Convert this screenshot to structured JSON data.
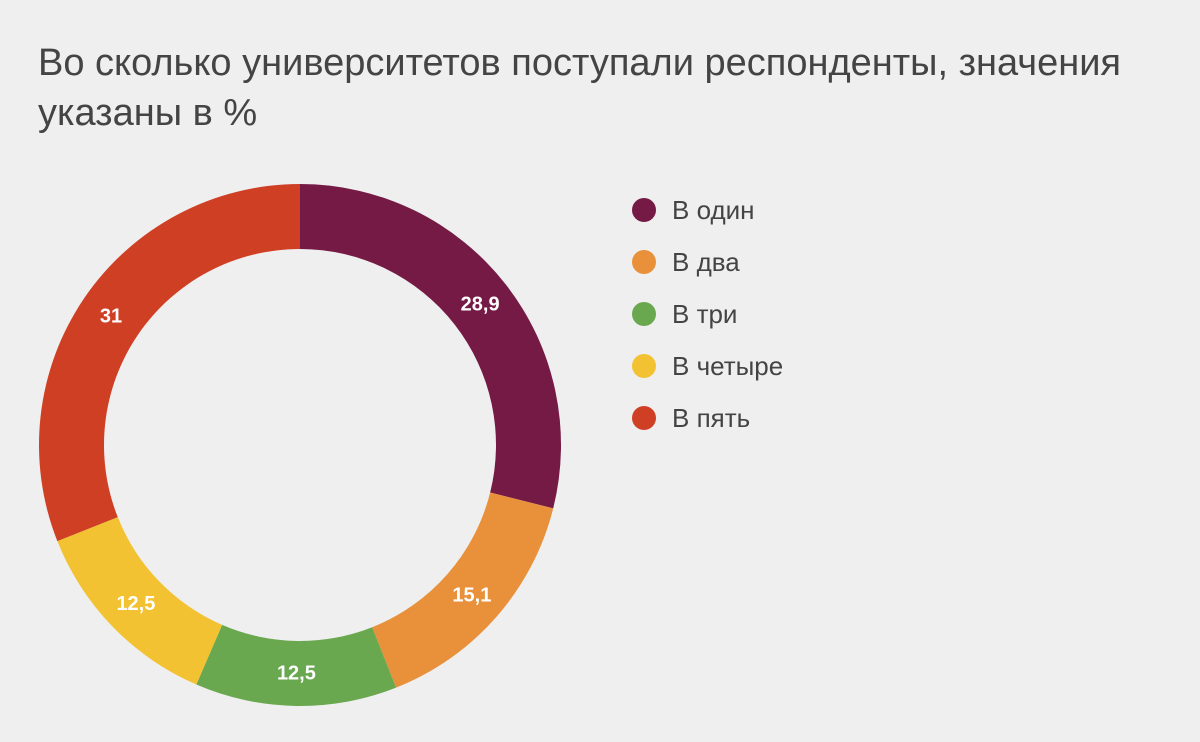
{
  "title": "Во сколько университетов поступали респонденты, значения указаны в %",
  "chart_data": {
    "type": "pie",
    "title": "Во сколько университетов поступали респонденты, значения указаны в %",
    "donut": true,
    "legend_position": "right",
    "slices": [
      {
        "label": "В один",
        "value": 28.9,
        "value_label": "28,9",
        "color": "#751a45"
      },
      {
        "label": "В два",
        "value": 15.1,
        "value_label": "15,1",
        "color": "#e8913a"
      },
      {
        "label": "В три",
        "value": 12.5,
        "value_label": "12,5",
        "color": "#69a84f"
      },
      {
        "label": "В четыре",
        "value": 12.5,
        "value_label": "12,5",
        "color": "#f2c232"
      },
      {
        "label": "В пять",
        "value": 31,
        "value_label": "31",
        "color": "#cf3f24"
      }
    ]
  }
}
